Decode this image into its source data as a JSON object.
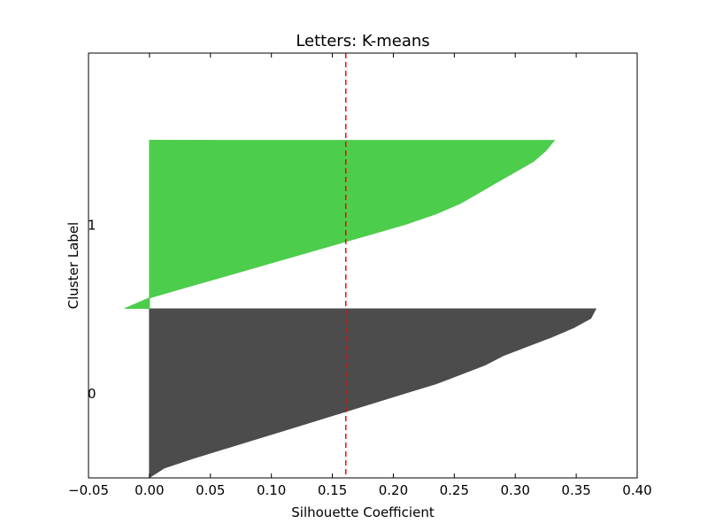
{
  "chart_data": {
    "type": "area",
    "title": "Letters: K-means",
    "xlabel": "Silhouette Coefficient",
    "ylabel": "Cluster Label",
    "xlim": [
      -0.05,
      0.4
    ],
    "x_ticks": [
      "−0.05",
      "0.00",
      "0.05",
      "0.10",
      "0.15",
      "0.20",
      "0.25",
      "0.30",
      "0.35",
      "0.40"
    ],
    "grid": false,
    "reference_line": {
      "x": 0.161,
      "color": "#ff0000",
      "style": "dashed"
    },
    "clusters": [
      {
        "label": "0",
        "color": "#4c4c4c",
        "coefficients_sorted_low_to_high": [
          0.0,
          0.012,
          0.035,
          0.06,
          0.085,
          0.11,
          0.135,
          0.16,
          0.185,
          0.21,
          0.235,
          0.255,
          0.275,
          0.29,
          0.31,
          0.33,
          0.348,
          0.362,
          0.366
        ]
      },
      {
        "label": "1",
        "color": "#4ccd4c",
        "coefficients_sorted_low_to_high": [
          -0.02,
          0.0,
          0.03,
          0.06,
          0.09,
          0.12,
          0.15,
          0.18,
          0.21,
          0.235,
          0.255,
          0.27,
          0.285,
          0.3,
          0.315,
          0.325,
          0.332
        ]
      }
    ]
  }
}
